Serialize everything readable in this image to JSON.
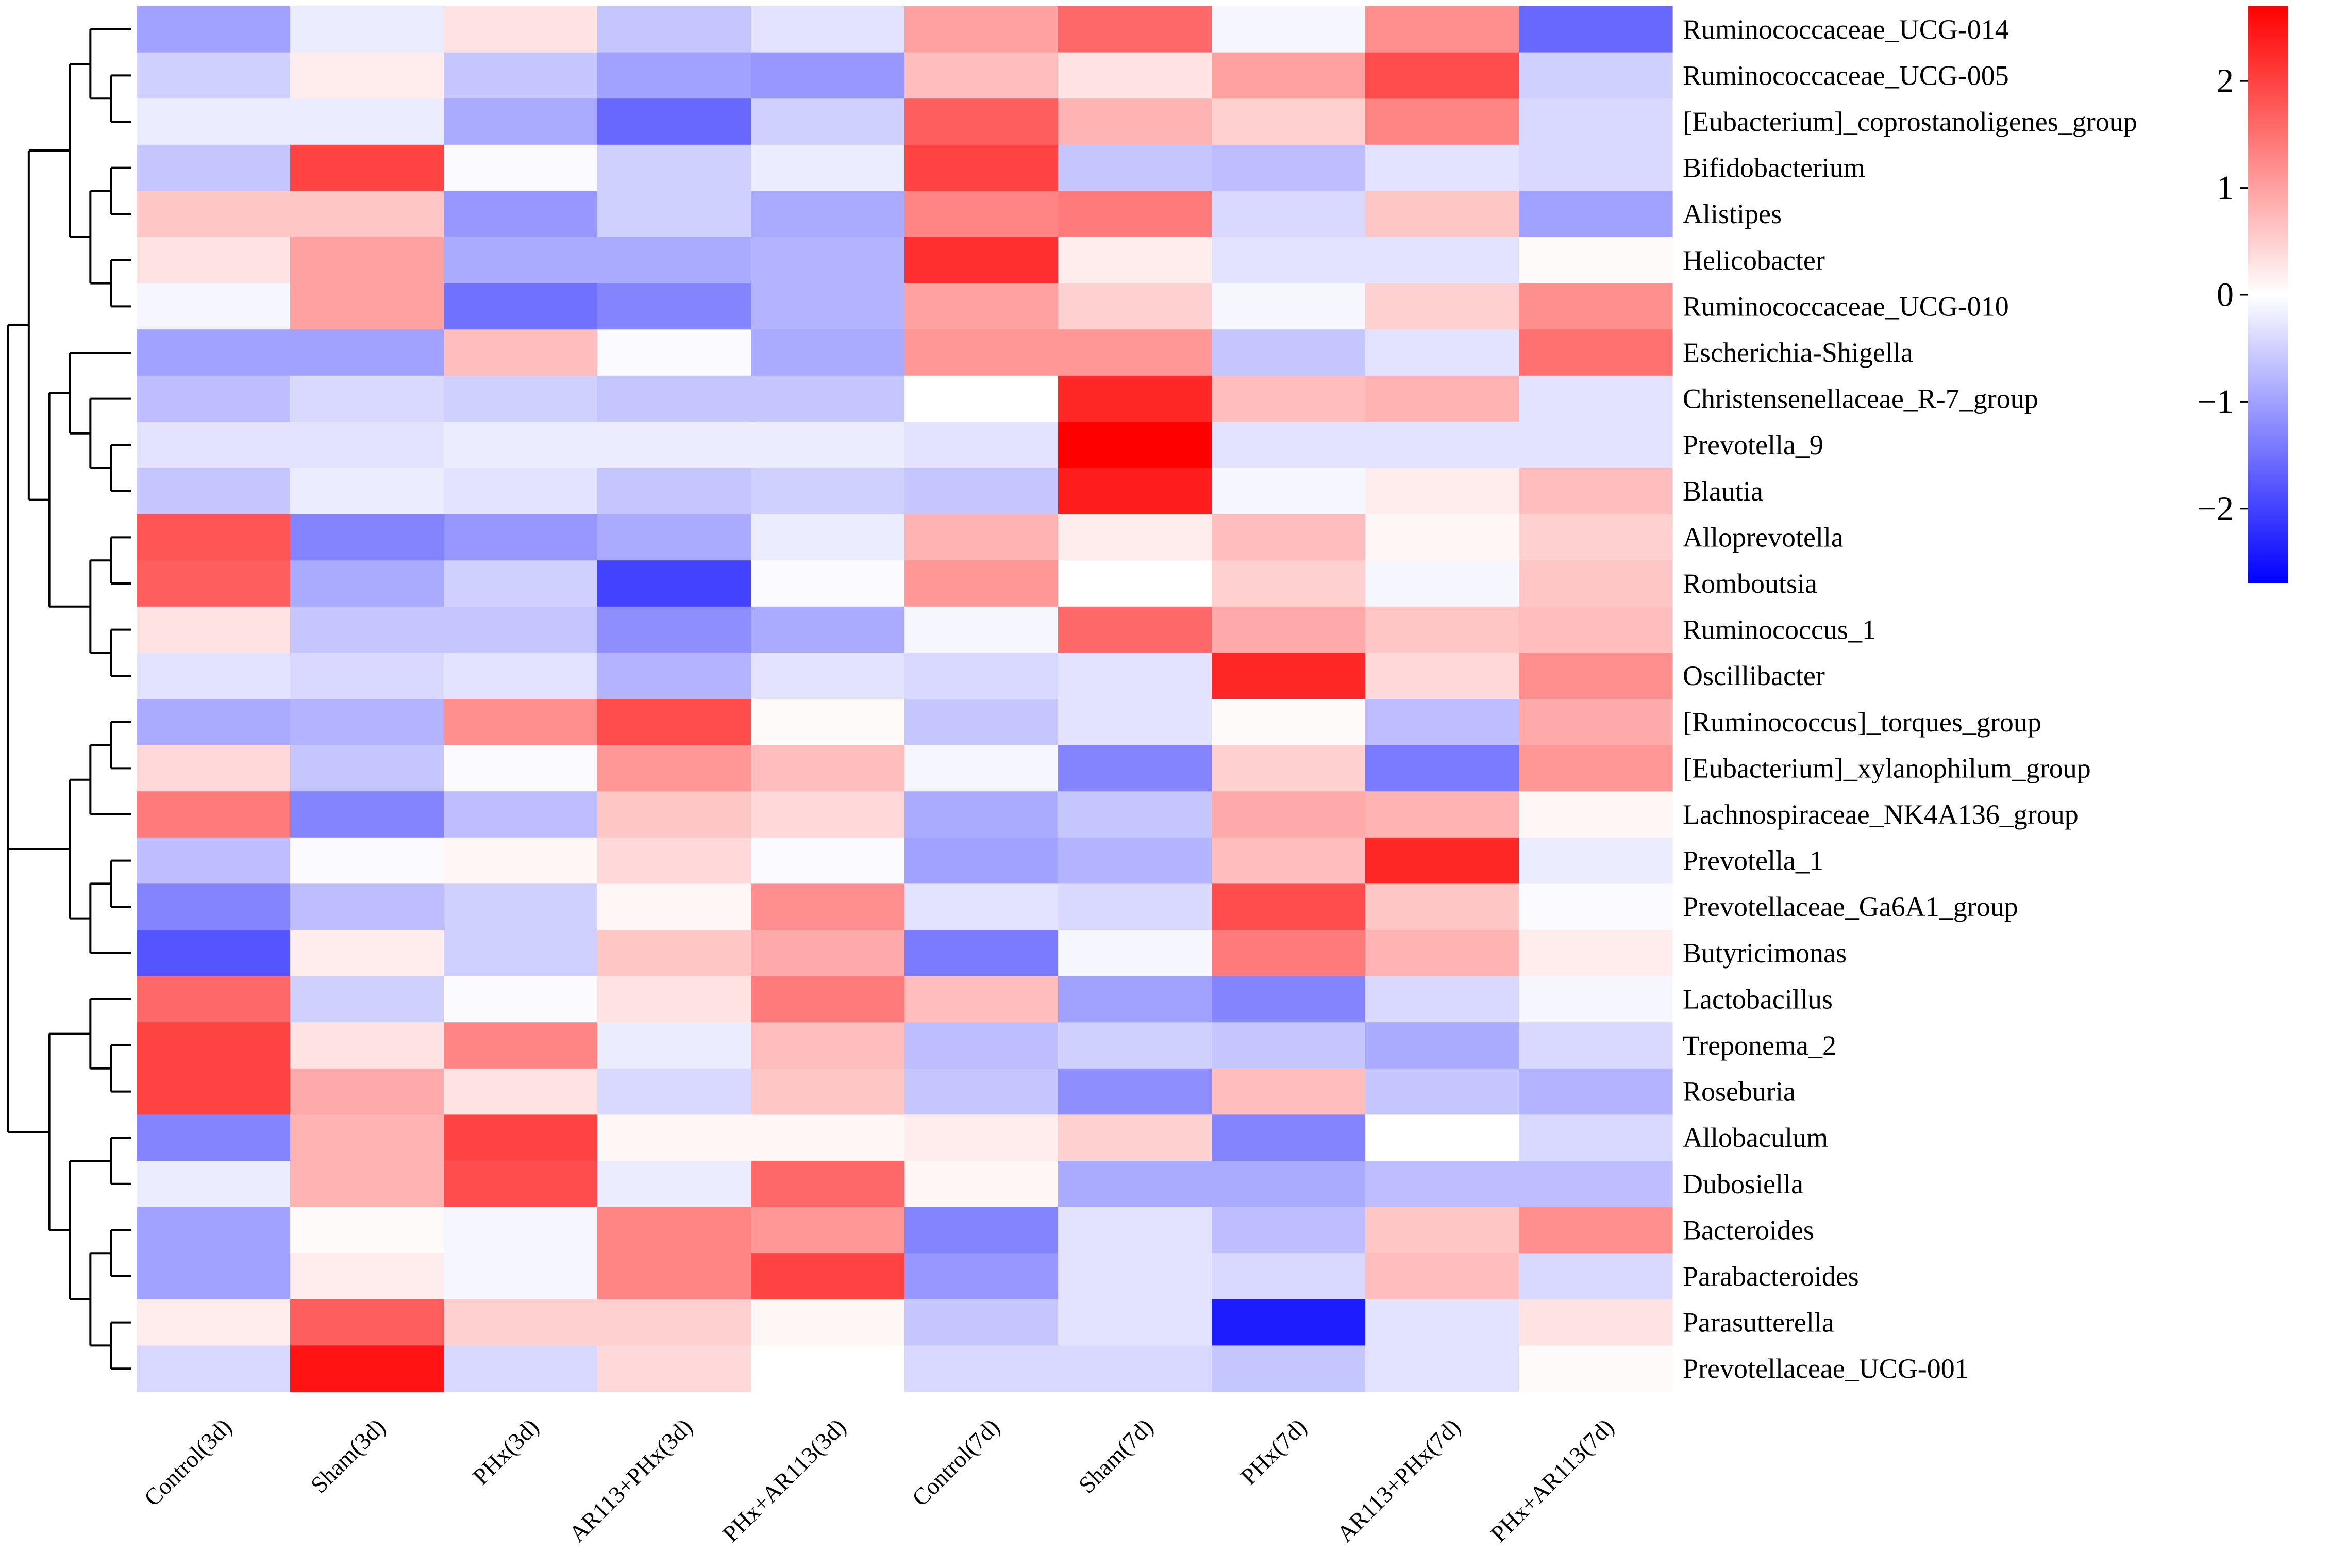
{
  "chart_data": {
    "type": "heatmap",
    "title": "",
    "xlabel": "",
    "ylabel": "",
    "columns": [
      "Control(3d)",
      "Sham(3d)",
      "PHx(3d)",
      "AR113+PHx(3d)",
      "PHx+AR113(3d)",
      "Control(7d)",
      "Sham(7d)",
      "PHx(7d)",
      "AR113+PHx(7d)",
      "PHx+AR113(7d)"
    ],
    "rows": [
      "Ruminococcaceae_UCG-014",
      "Ruminococcaceae_UCG-005",
      "[Eubacterium]_coprostanoligenes_group",
      "Bifidobacterium",
      "Alistipes",
      "Helicobacter",
      "Ruminococcaceae_UCG-010",
      "Escherichia-Shigella",
      "Christensenellaceae_R-7_group",
      "Prevotella_9",
      "Blautia",
      "Alloprevotella",
      "Romboutsia",
      "Ruminococcus_1",
      "Oscillibacter",
      "[Ruminococcus]_torques_group",
      "[Eubacterium]_xylanophilum_group",
      "Lachnospiraceae_NK4A136_group",
      "Prevotella_1",
      "Prevotellaceae_Ga6A1_group",
      "Butyricimonas",
      "Lactobacillus",
      "Treponema_2",
      "Roseburia",
      "Allobaculum",
      "Dubosiella",
      "Bacteroides",
      "Parabacteroides",
      "Parasutterella",
      "Prevotellaceae_UCG-001"
    ],
    "values": [
      [
        -1.0,
        -0.2,
        0.3,
        -0.6,
        -0.3,
        1.0,
        1.6,
        -0.1,
        1.2,
        -1.6
      ],
      [
        -0.5,
        0.2,
        -0.6,
        -1.0,
        -1.1,
        0.7,
        0.3,
        1.0,
        1.9,
        -0.5
      ],
      [
        -0.2,
        -0.2,
        -0.9,
        -1.6,
        -0.5,
        1.7,
        0.8,
        0.5,
        1.3,
        -0.4
      ],
      [
        -0.6,
        2.0,
        -0.05,
        -0.5,
        -0.2,
        2.0,
        -0.6,
        -0.7,
        -0.3,
        -0.4
      ],
      [
        0.6,
        0.6,
        -1.1,
        -0.5,
        -0.9,
        1.3,
        1.4,
        -0.4,
        0.6,
        -1.0
      ],
      [
        0.3,
        1.0,
        -0.9,
        -0.9,
        -0.8,
        2.2,
        0.2,
        -0.3,
        -0.3,
        0.05
      ],
      [
        -0.1,
        1.0,
        -1.5,
        -1.3,
        -0.8,
        1.0,
        0.5,
        -0.1,
        0.5,
        1.2
      ],
      [
        -1.0,
        -1.0,
        0.7,
        -0.05,
        -0.9,
        1.1,
        1.1,
        -0.6,
        -0.3,
        1.5
      ],
      [
        -0.7,
        -0.4,
        -0.5,
        -0.6,
        -0.6,
        0.0,
        2.3,
        0.7,
        0.8,
        -0.3
      ],
      [
        -0.3,
        -0.3,
        -0.2,
        -0.2,
        -0.2,
        -0.3,
        2.7,
        -0.3,
        -0.3,
        -0.3
      ],
      [
        -0.6,
        -0.2,
        -0.3,
        -0.6,
        -0.5,
        -0.6,
        2.4,
        -0.1,
        0.2,
        0.7
      ],
      [
        1.8,
        -1.3,
        -1.1,
        -0.9,
        -0.2,
        0.8,
        0.2,
        0.7,
        0.1,
        0.5
      ],
      [
        1.7,
        -0.9,
        -0.5,
        -2.0,
        -0.05,
        1.1,
        0.0,
        0.5,
        -0.1,
        0.6
      ],
      [
        0.3,
        -0.6,
        -0.6,
        -1.2,
        -0.9,
        -0.1,
        1.6,
        0.9,
        0.6,
        0.7
      ],
      [
        -0.3,
        -0.4,
        -0.3,
        -0.8,
        -0.3,
        -0.4,
        -0.3,
        2.3,
        0.4,
        1.2
      ],
      [
        -0.9,
        -0.8,
        1.2,
        1.9,
        0.05,
        -0.6,
        -0.3,
        0.05,
        -0.7,
        0.9
      ],
      [
        0.4,
        -0.6,
        -0.05,
        1.1,
        0.7,
        -0.1,
        -1.3,
        0.5,
        -1.4,
        1.1
      ],
      [
        1.4,
        -1.3,
        -0.7,
        0.6,
        0.4,
        -0.9,
        -0.6,
        0.9,
        0.8,
        0.1
      ],
      [
        -0.7,
        -0.05,
        0.1,
        0.4,
        -0.05,
        -1.0,
        -0.8,
        0.7,
        2.3,
        -0.2
      ],
      [
        -1.3,
        -0.7,
        -0.5,
        0.1,
        1.2,
        -0.3,
        -0.4,
        1.9,
        0.6,
        -0.05
      ],
      [
        -1.8,
        0.2,
        -0.5,
        0.6,
        0.9,
        -1.4,
        -0.1,
        1.4,
        0.8,
        0.2
      ],
      [
        1.6,
        -0.5,
        -0.05,
        0.3,
        1.4,
        0.7,
        -1.0,
        -1.3,
        -0.4,
        -0.1
      ],
      [
        2.0,
        0.3,
        1.3,
        -0.2,
        0.7,
        -0.7,
        -0.5,
        -0.6,
        -0.9,
        -0.4
      ],
      [
        2.0,
        0.9,
        0.3,
        -0.4,
        0.6,
        -0.6,
        -1.2,
        0.7,
        -0.6,
        -0.8
      ],
      [
        -1.3,
        0.8,
        2.0,
        0.1,
        0.1,
        0.2,
        0.5,
        -1.3,
        0.0,
        -0.4
      ],
      [
        -0.2,
        0.8,
        1.9,
        -0.2,
        1.6,
        0.1,
        -0.9,
        -0.9,
        -0.7,
        -0.7
      ],
      [
        -1.0,
        0.05,
        -0.1,
        1.3,
        1.1,
        -1.3,
        -0.3,
        -0.7,
        0.6,
        1.2
      ],
      [
        -1.0,
        0.2,
        -0.1,
        1.3,
        2.0,
        -1.1,
        -0.3,
        -0.4,
        0.7,
        -0.4
      ],
      [
        0.2,
        1.7,
        0.5,
        0.5,
        0.1,
        -0.6,
        -0.3,
        -2.4,
        -0.3,
        0.3
      ],
      [
        -0.4,
        2.5,
        -0.4,
        0.4,
        0.0,
        -0.4,
        -0.4,
        -0.6,
        -0.3,
        0.05
      ]
    ],
    "colorscale": {
      "low": "#0000ff",
      "mid": "#ffffff",
      "high": "#ff0000",
      "min": -2.7,
      "max": 2.7
    },
    "colorbar_ticks": [
      2,
      1,
      0,
      -1,
      -2
    ],
    "colorbar_tick_labels": [
      "2",
      "1",
      "0",
      "−1",
      "−2"
    ],
    "dendrogram": "row dendrogram (left)"
  }
}
